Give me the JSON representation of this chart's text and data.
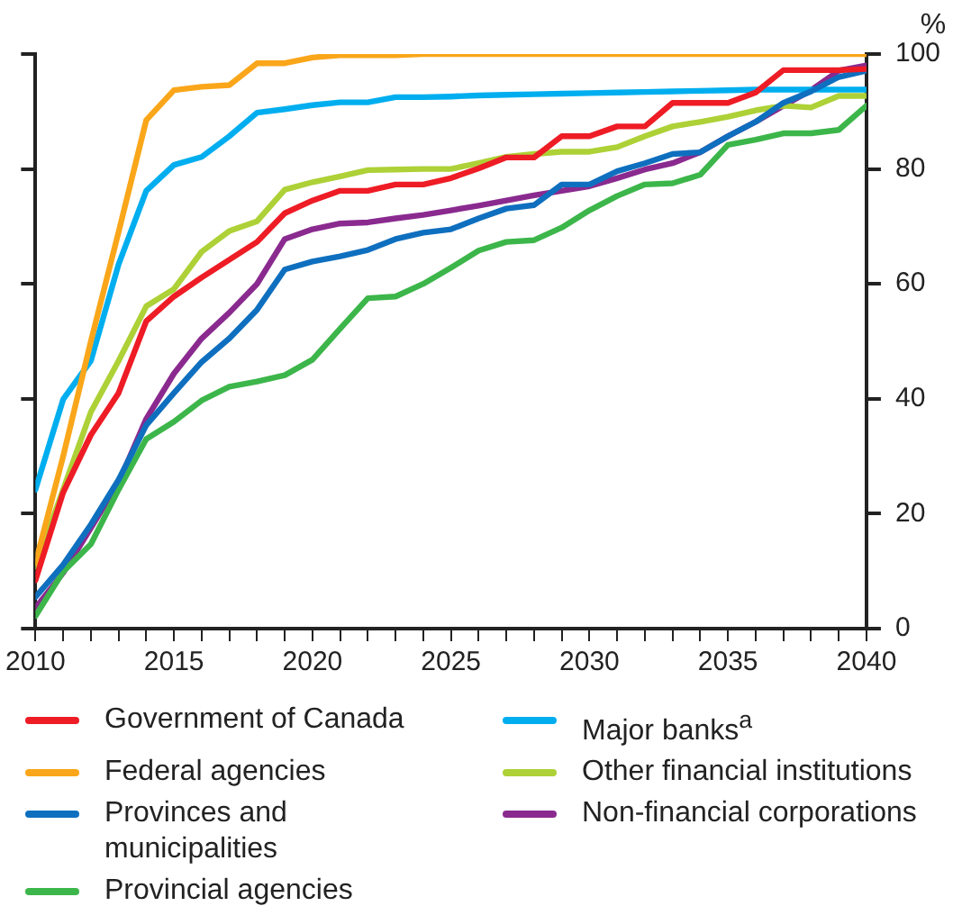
{
  "chart_data": {
    "type": "line",
    "ylabel": "%",
    "legend": "bottom",
    "grid": false,
    "marker": "none",
    "line_style": "solid",
    "x": [
      2010,
      2011,
      2012,
      2013,
      2014,
      2015,
      2016,
      2017,
      2018,
      2019,
      2020,
      2021,
      2022,
      2023,
      2024,
      2025,
      2026,
      2027,
      2028,
      2029,
      2030,
      2031,
      2032,
      2033,
      2034,
      2035,
      2036,
      2037,
      2038,
      2039,
      2040
    ],
    "xlim": [
      2010,
      2040
    ],
    "xticks": [
      2010,
      {
        "value": 2011,
        "label": null
      },
      {
        "value": 2012,
        "label": null
      },
      {
        "value": 2013,
        "label": null
      },
      {
        "value": 2014,
        "label": null
      },
      2015,
      {
        "value": 2016,
        "label": null
      },
      {
        "value": 2017,
        "label": null
      },
      {
        "value": 2018,
        "label": null
      },
      {
        "value": 2019,
        "label": null
      },
      2020,
      {
        "value": 2021,
        "label": null
      },
      {
        "value": 2022,
        "label": null
      },
      {
        "value": 2023,
        "label": null
      },
      {
        "value": 2024,
        "label": null
      },
      2025,
      {
        "value": 2026,
        "label": null
      },
      {
        "value": 2027,
        "label": null
      },
      {
        "value": 2028,
        "label": null
      },
      {
        "value": 2029,
        "label": null
      },
      2030,
      {
        "value": 2031,
        "label": null
      },
      {
        "value": 2032,
        "label": null
      },
      {
        "value": 2033,
        "label": null
      },
      {
        "value": 2034,
        "label": null
      },
      2035,
      {
        "value": 2036,
        "label": null
      },
      {
        "value": 2037,
        "label": null
      },
      {
        "value": 2038,
        "label": null
      },
      {
        "value": 2039,
        "label": null
      },
      2040
    ],
    "ylim": [
      0,
      100
    ],
    "yticks": [
      0,
      20,
      40,
      60,
      80,
      100
    ],
    "series": [
      {
        "name": "Government of Canada",
        "color": "#ee1c25",
        "values": [
          8.4,
          23.7,
          33.7,
          41,
          53.5,
          57.8,
          61.1,
          64.2,
          67.3,
          72.3,
          74.5,
          76.2,
          76.2,
          77.3,
          77.3,
          78.4,
          80.1,
          82,
          82,
          85.7,
          85.7,
          87.4,
          87.4,
          91.5,
          91.5,
          91.5,
          93.3,
          97.2,
          97.2,
          97.2,
          97.4
        ]
      },
      {
        "name": "Federal agencies",
        "color": "#faa61a",
        "values": [
          11.4,
          30,
          50,
          69,
          88.5,
          93.7,
          94.3,
          94.6,
          98.4,
          98.4,
          99.4,
          99.8,
          99.8,
          99.8,
          100,
          100,
          100,
          100,
          100,
          100,
          100,
          100,
          100,
          100,
          100,
          100,
          100,
          100,
          100,
          100,
          100
        ]
      },
      {
        "name": "Provinces and municipalities",
        "color": "#0f6fbf",
        "values": [
          5.5,
          11.1,
          18.1,
          25.9,
          35.4,
          41,
          46.4,
          50.5,
          55.5,
          62.5,
          63.9,
          64.8,
          65.9,
          67.8,
          68.9,
          69.5,
          71.4,
          73.1,
          73.7,
          77.3,
          77.3,
          79.6,
          81,
          82.6,
          82.9,
          85.7,
          88.2,
          91.5,
          93.5,
          96,
          97.1
        ]
      },
      {
        "name": "Provincial agencies",
        "color": "#3cb64a",
        "values": [
          2.2,
          9.9,
          14.7,
          24.2,
          33,
          36,
          39.7,
          42.1,
          43,
          44.1,
          46.8,
          52.2,
          57.5,
          57.8,
          60,
          62.8,
          65.8,
          67.3,
          67.6,
          69.8,
          72.8,
          75.3,
          77.3,
          77.5,
          79,
          84.2,
          85.1,
          86.2,
          86.2,
          86.8,
          91
        ]
      },
      {
        "name": "Major banks$^{a}$",
        "color": "#00aeef",
        "values": [
          24.2,
          39.9,
          46.6,
          63.4,
          76.2,
          80.7,
          82.1,
          85.7,
          89.8,
          90.4,
          91.1,
          91.6,
          91.6,
          92.5,
          92.5,
          92.6,
          92.8,
          92.9,
          93,
          93.1,
          93.2,
          93.3,
          93.4,
          93.5,
          93.6,
          93.7,
          93.8,
          93.8,
          93.8,
          93.8,
          93.8
        ]
      },
      {
        "name": "Other financial institutions",
        "color": "#add136",
        "values": [
          10.8,
          24.2,
          37.7,
          46.6,
          56.1,
          59.1,
          65.6,
          69.2,
          70.9,
          76.4,
          77.7,
          78.7,
          79.8,
          79.9,
          80,
          80,
          81,
          82.1,
          82.6,
          83,
          83,
          83.8,
          85.7,
          87.4,
          88.2,
          89.1,
          90.2,
          91,
          90.7,
          92.7,
          92.7
        ]
      },
      {
        "name": "Non-financial corporations",
        "color": "#8a2a8f",
        "values": [
          3.6,
          9.7,
          17.5,
          25.4,
          36.5,
          44.4,
          50.5,
          55,
          60,
          67.8,
          69.5,
          70.5,
          70.7,
          71.4,
          72,
          72.8,
          73.6,
          74.5,
          75.4,
          76.2,
          77,
          78.4,
          79.9,
          81,
          82.9,
          85.7,
          88.2,
          91,
          93.7,
          97.1,
          98
        ]
      }
    ]
  }
}
